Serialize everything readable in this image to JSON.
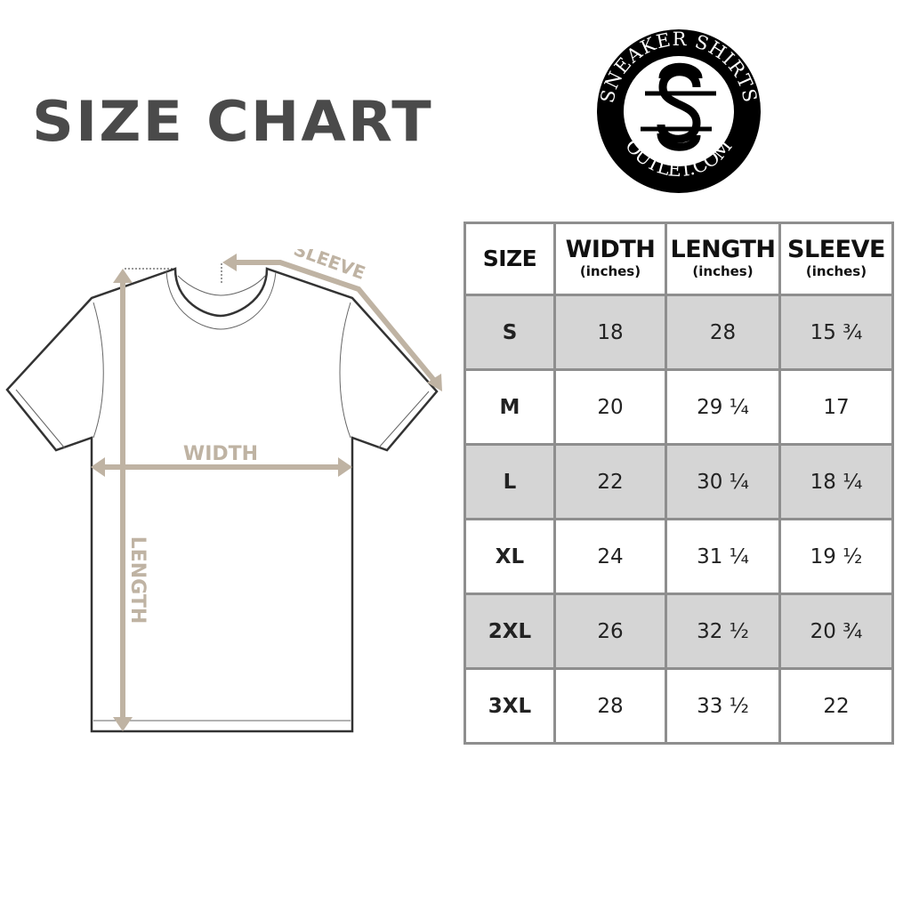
{
  "title": "SIZE CHART",
  "logo": {
    "top_text": "SNEAKER SHIRTS",
    "bottom_text": "OUTLET.COM",
    "monogram": "SS"
  },
  "diagram": {
    "sleeve_label": "SLEEVE",
    "width_label": "WIDTH",
    "length_label": "LENGTH",
    "accent_color": "#bfb3a3",
    "outline_color": "#333333"
  },
  "table": {
    "headers": [
      {
        "main": "SIZE",
        "sub": ""
      },
      {
        "main": "WIDTH",
        "sub": "(inches)"
      },
      {
        "main": "LENGTH",
        "sub": "(inches)"
      },
      {
        "main": "SLEEVE",
        "sub": "(inches)"
      }
    ],
    "rows": [
      [
        "S",
        "18",
        "28",
        "15 ¾"
      ],
      [
        "M",
        "20",
        "29 ¼",
        "17"
      ],
      [
        "L",
        "22",
        "30 ¼",
        "18 ¼"
      ],
      [
        "XL",
        "24",
        "31 ¼",
        "19 ½"
      ],
      [
        "2XL",
        "26",
        "32 ½",
        "20 ¾"
      ],
      [
        "3XL",
        "28",
        "33 ½",
        "22"
      ]
    ],
    "shade_color": "#d5d5d5",
    "border_color": "#8e8e8e"
  }
}
